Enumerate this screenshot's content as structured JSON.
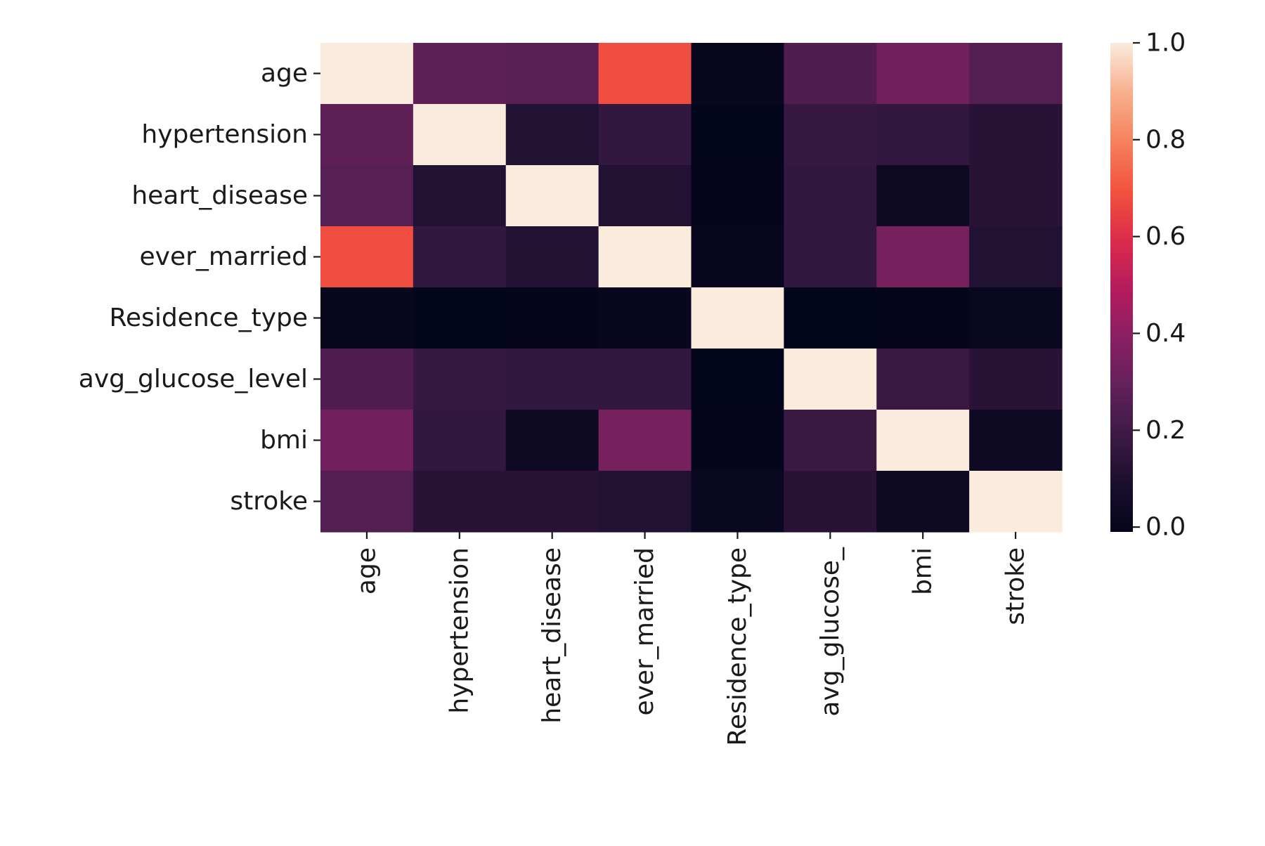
{
  "chart_data": {
    "type": "heatmap",
    "title": "",
    "xlabel": "",
    "ylabel": "",
    "variables": [
      "age",
      "hypertension",
      "heart_disease",
      "ever_married",
      "Residence_type",
      "avg_glucose_level",
      "bmi",
      "stroke"
    ],
    "x_tick_labels": [
      "age",
      "hypertension",
      "heart_disease",
      "ever_married",
      "Residence_type",
      "avg_glucose_",
      "bmi",
      "stroke"
    ],
    "matrix": [
      [
        1.0,
        0.28,
        0.26,
        0.68,
        0.01,
        0.24,
        0.33,
        0.25
      ],
      [
        0.28,
        1.0,
        0.11,
        0.16,
        -0.01,
        0.17,
        0.16,
        0.13
      ],
      [
        0.26,
        0.11,
        1.0,
        0.11,
        0.0,
        0.16,
        0.04,
        0.13
      ],
      [
        0.68,
        0.16,
        0.11,
        1.0,
        0.01,
        0.16,
        0.34,
        0.11
      ],
      [
        0.01,
        -0.01,
        0.0,
        0.01,
        1.0,
        -0.01,
        0.0,
        0.02
      ],
      [
        0.24,
        0.17,
        0.16,
        0.16,
        -0.01,
        1.0,
        0.18,
        0.13
      ],
      [
        0.33,
        0.16,
        0.04,
        0.34,
        0.0,
        0.18,
        1.0,
        0.04
      ],
      [
        0.25,
        0.13,
        0.13,
        0.11,
        0.02,
        0.13,
        0.04,
        1.0
      ]
    ],
    "colorbar": {
      "vmin": -0.01,
      "vmax": 1.0,
      "ticks": [
        0.0,
        0.2,
        0.4,
        0.6,
        0.8,
        1.0
      ],
      "tick_labels": [
        "0.0",
        "0.2",
        "0.4",
        "0.6",
        "0.8",
        "1.0"
      ]
    },
    "colormap": "rocket",
    "colormap_stops": [
      [
        0.0,
        "#03051a"
      ],
      [
        0.1,
        "#1b0f2e"
      ],
      [
        0.2,
        "#3d1a45"
      ],
      [
        0.3,
        "#63215a"
      ],
      [
        0.4,
        "#8b1f63"
      ],
      [
        0.5,
        "#b61c5d"
      ],
      [
        0.6,
        "#dd2c4a"
      ],
      [
        0.7,
        "#f2543e"
      ],
      [
        0.8,
        "#f6825d"
      ],
      [
        0.9,
        "#f8b08f"
      ],
      [
        1.0,
        "#faebdd"
      ]
    ]
  }
}
